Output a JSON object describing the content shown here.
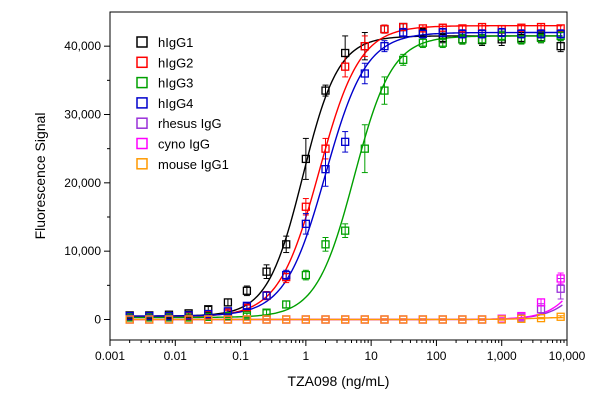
{
  "chart_data": {
    "type": "scatter",
    "xlabel": "TZA098 (ng/mL)",
    "ylabel": "Fluorescence Signal",
    "xscale": "log",
    "xlim": [
      0.001,
      10000
    ],
    "ylim": [
      -3000,
      45000
    ],
    "x_ticks": [
      0.001,
      0.01,
      0.1,
      1,
      10,
      100,
      1000,
      10000
    ],
    "x_tick_labels": [
      "0.001",
      "0.01",
      "0.1",
      "1",
      "10",
      "100",
      "1,000",
      "10,000"
    ],
    "y_ticks": [
      0,
      10000,
      20000,
      30000,
      40000
    ],
    "y_tick_labels": [
      "0",
      "10,000",
      "20,000",
      "30,000",
      "40,000"
    ],
    "legend_position": "top-left",
    "series": [
      {
        "name": "hIgG1",
        "color": "#000000",
        "x": [
          0.002,
          0.004,
          0.008,
          0.016,
          0.032,
          0.064,
          0.125,
          0.25,
          0.5,
          1,
          2,
          4,
          8,
          16,
          31,
          62,
          125,
          250,
          500,
          1000,
          2000,
          4000,
          8000
        ],
        "y": [
          600,
          600,
          700,
          900,
          1500,
          2500,
          4200,
          7000,
          11000,
          23500,
          33500,
          39000,
          40000,
          42500,
          42800,
          42000,
          41200,
          41000,
          40900,
          41000,
          41200,
          41300,
          40000
        ],
        "err": [
          200,
          200,
          200,
          300,
          400,
          500,
          700,
          1000,
          1200,
          3000,
          800,
          2500,
          2000,
          500,
          500,
          600,
          700,
          700,
          800,
          900,
          800,
          800,
          800
        ],
        "fit": {
          "bottom": 500,
          "top": 41500,
          "ec50": 0.9,
          "hill": 1.6
        }
      },
      {
        "name": "hIgG2",
        "color": "#ff0000",
        "x": [
          0.002,
          0.004,
          0.008,
          0.016,
          0.032,
          0.064,
          0.125,
          0.25,
          0.5,
          1,
          2,
          4,
          8,
          16,
          31,
          62,
          125,
          250,
          500,
          1000,
          2000,
          4000,
          8000
        ],
        "y": [
          400,
          400,
          400,
          500,
          700,
          1000,
          1700,
          3500,
          6200,
          16500,
          25000,
          37000,
          40000,
          42500,
          42800,
          42600,
          42700,
          42600,
          42800,
          42500,
          42700,
          42800,
          42600
        ],
        "err": [
          150,
          150,
          150,
          200,
          200,
          300,
          400,
          600,
          800,
          1200,
          1500,
          1500,
          1500,
          600,
          500,
          500,
          500,
          500,
          500,
          500,
          500,
          500,
          500
        ],
        "fit": {
          "bottom": 400,
          "top": 43000,
          "ec50": 1.6,
          "hill": 1.4
        }
      },
      {
        "name": "hIgG3",
        "color": "#00a000",
        "x": [
          0.002,
          0.004,
          0.008,
          0.016,
          0.032,
          0.064,
          0.125,
          0.25,
          0.5,
          1,
          2,
          4,
          8,
          16,
          31,
          62,
          125,
          250,
          500,
          1000,
          2000,
          4000,
          8000
        ],
        "y": [
          300,
          300,
          300,
          300,
          400,
          500,
          600,
          1000,
          2200,
          6500,
          11000,
          13000,
          25000,
          33500,
          38000,
          40500,
          40500,
          41000,
          41000,
          41500,
          41000,
          41200,
          41500
        ],
        "err": [
          100,
          100,
          100,
          150,
          150,
          200,
          300,
          400,
          500,
          700,
          1000,
          1000,
          3500,
          2000,
          800,
          700,
          700,
          700,
          700,
          700,
          700,
          700,
          700
        ],
        "fit": {
          "bottom": 300,
          "top": 41500,
          "ec50": 5.5,
          "hill": 1.5
        }
      },
      {
        "name": "hIgG4",
        "color": "#0000cc",
        "x": [
          0.002,
          0.004,
          0.008,
          0.016,
          0.032,
          0.064,
          0.125,
          0.25,
          0.5,
          1,
          2,
          4,
          8,
          16,
          31,
          62,
          125,
          250,
          500,
          1000,
          2000,
          4000,
          8000
        ],
        "y": [
          500,
          500,
          500,
          600,
          800,
          1200,
          2000,
          3500,
          6500,
          14000,
          22000,
          26000,
          36000,
          40000,
          42000,
          41800,
          42000,
          41800,
          41800,
          42000,
          41800,
          41800,
          41800
        ],
        "err": [
          150,
          150,
          150,
          200,
          200,
          300,
          400,
          500,
          700,
          1500,
          2500,
          1500,
          1500,
          800,
          600,
          600,
          600,
          600,
          600,
          600,
          600,
          600,
          600
        ],
        "fit": {
          "bottom": 500,
          "top": 42000,
          "ec50": 2.0,
          "hill": 1.4
        }
      },
      {
        "name": "rhesus IgG",
        "color": "#9a30d8",
        "x": [
          0.002,
          0.004,
          0.008,
          0.016,
          0.032,
          0.064,
          0.125,
          0.25,
          0.5,
          1,
          2,
          4,
          8,
          16,
          31,
          62,
          125,
          250,
          500,
          1000,
          2000,
          4000,
          8000
        ],
        "y": [
          0,
          0,
          0,
          0,
          0,
          0,
          0,
          0,
          0,
          0,
          0,
          0,
          0,
          0,
          0,
          0,
          0,
          0,
          0,
          100,
          300,
          1500,
          4500
        ],
        "err": [
          100,
          100,
          100,
          100,
          100,
          100,
          100,
          100,
          100,
          100,
          100,
          100,
          100,
          100,
          100,
          100,
          100,
          100,
          100,
          150,
          300,
          800,
          1500
        ],
        "fit": {
          "bottom": 0,
          "top": 42000,
          "ec50": 60000,
          "hill": 1.5
        }
      },
      {
        "name": "cyno IgG",
        "color": "#ff00ff",
        "x": [
          0.002,
          0.004,
          0.008,
          0.016,
          0.032,
          0.064,
          0.125,
          0.25,
          0.5,
          1,
          2,
          4,
          8,
          16,
          31,
          62,
          125,
          250,
          500,
          1000,
          2000,
          4000,
          8000
        ],
        "y": [
          0,
          0,
          0,
          0,
          0,
          0,
          0,
          0,
          0,
          0,
          0,
          0,
          0,
          0,
          0,
          0,
          0,
          0,
          0,
          100,
          500,
          2500,
          6000
        ],
        "err": [
          100,
          100,
          100,
          100,
          100,
          100,
          100,
          100,
          100,
          100,
          100,
          100,
          100,
          100,
          100,
          100,
          100,
          100,
          100,
          150,
          300,
          500,
          800
        ],
        "fit": {
          "bottom": 0,
          "top": 42000,
          "ec50": 45000,
          "hill": 1.6
        }
      },
      {
        "name": "mouse IgG1",
        "color": "#ff9900",
        "x": [
          0.002,
          0.004,
          0.008,
          0.016,
          0.032,
          0.064,
          0.125,
          0.25,
          0.5,
          1,
          2,
          4,
          8,
          16,
          31,
          62,
          125,
          250,
          500,
          1000,
          2000,
          4000,
          8000
        ],
        "y": [
          0,
          0,
          0,
          0,
          0,
          0,
          0,
          0,
          0,
          0,
          0,
          0,
          0,
          0,
          0,
          0,
          0,
          0,
          0,
          0,
          100,
          200,
          400
        ],
        "err": [
          100,
          100,
          100,
          100,
          100,
          100,
          100,
          100,
          100,
          100,
          100,
          100,
          100,
          100,
          100,
          100,
          100,
          100,
          100,
          100,
          100,
          100,
          150
        ],
        "fit": {
          "bottom": 0,
          "top": 400,
          "ec50": 4000,
          "hill": 1.5
        }
      }
    ]
  }
}
